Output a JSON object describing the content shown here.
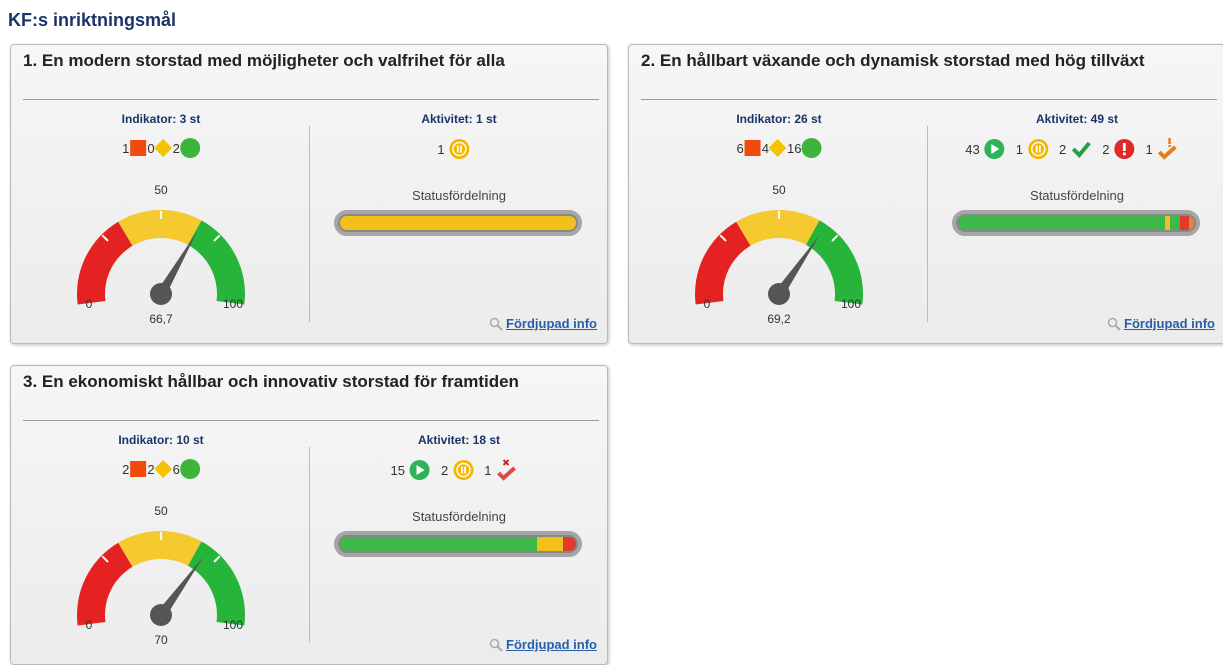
{
  "header": {
    "title": "KF:s inriktningsmål"
  },
  "cards": [
    {
      "title": "1. En modern storstad med möjligheter och valfrihet för alla",
      "indicator": {
        "label": "Indikator: 3 st",
        "counts": [
          1,
          0,
          2
        ]
      },
      "gauge": {
        "value": 66.7,
        "label": "66,7",
        "min": 0,
        "mid": 50,
        "max": 100
      },
      "activity": {
        "label": "Aktivitet: 1 st",
        "items": [
          {
            "status": "paused",
            "count": 1
          }
        ]
      },
      "status_label": "Statusfördelning",
      "link": "Fördjupad info"
    },
    {
      "title": "2. En hållbart växande och dynamisk storstad med hög tillväxt",
      "indicator": {
        "label": "Indikator: 26 st",
        "counts": [
          6,
          4,
          16
        ]
      },
      "gauge": {
        "value": 69.2,
        "label": "69,2",
        "min": 0,
        "mid": 50,
        "max": 100
      },
      "activity": {
        "label": "Aktivitet: 49 st",
        "items": [
          {
            "status": "ongoing",
            "count": 43
          },
          {
            "status": "paused",
            "count": 1
          },
          {
            "status": "done",
            "count": 2
          },
          {
            "status": "warning",
            "count": 2
          },
          {
            "status": "late",
            "count": 1
          }
        ]
      },
      "status_label": "Statusfördelning",
      "link": "Fördjupad info"
    },
    {
      "title": "3. En ekonomiskt hållbar och innovativ storstad för framtiden",
      "indicator": {
        "label": "Indikator: 10 st",
        "counts": [
          2,
          2,
          6
        ]
      },
      "gauge": {
        "value": 70,
        "label": "70",
        "min": 0,
        "mid": 50,
        "max": 100
      },
      "activity": {
        "label": "Aktivitet: 18 st",
        "items": [
          {
            "status": "ongoing",
            "count": 15
          },
          {
            "status": "paused",
            "count": 2
          },
          {
            "status": "cancelled",
            "count": 1
          }
        ]
      },
      "status_label": "Statusfördelning",
      "link": "Fördjupad info"
    }
  ]
}
